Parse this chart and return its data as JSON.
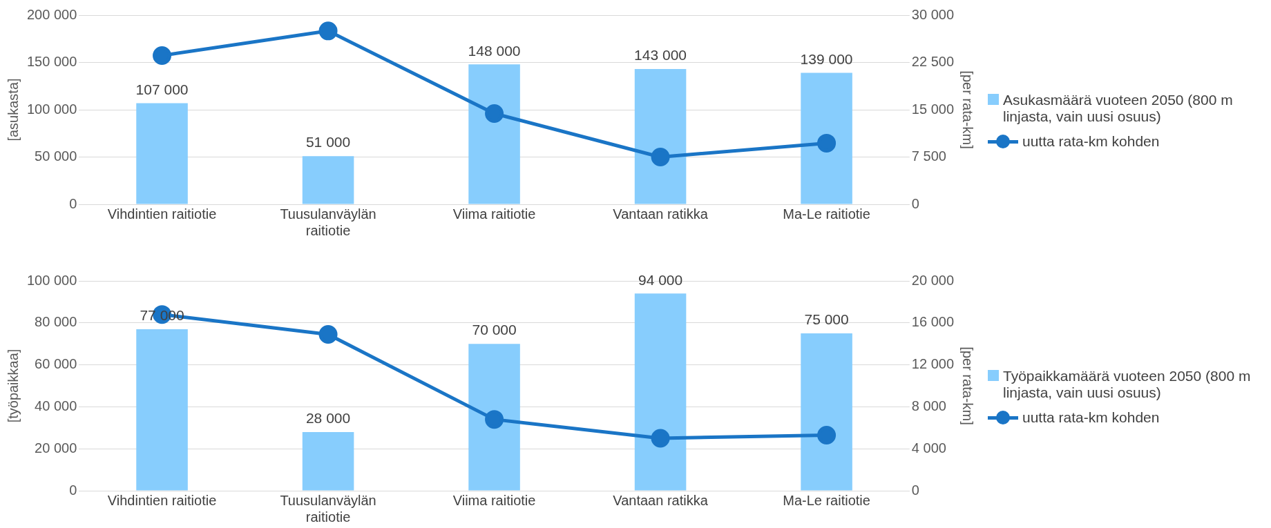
{
  "chart_data": [
    {
      "type": "bar",
      "categories": [
        "Vihdintien raitiotie",
        "Tuusulanväylän raitiotie",
        "Viima raitiotie",
        "Vantaan ratikka",
        "Ma-Le raitiotie"
      ],
      "ylabel": "[asukasta]",
      "y2label": "[per rata-km]",
      "ylim": [
        0,
        200000
      ],
      "yticks": [
        {
          "value": 0,
          "label": "0"
        },
        {
          "value": 50000,
          "label": "50 000"
        },
        {
          "value": 100000,
          "label": "100 000"
        },
        {
          "value": 150000,
          "label": "150 000"
        },
        {
          "value": 200000,
          "label": "200 000"
        }
      ],
      "y2lim": [
        0,
        30000
      ],
      "y2ticks": [
        {
          "value": 0,
          "label": "0"
        },
        {
          "value": 7500,
          "label": "7 500"
        },
        {
          "value": 15000,
          "label": "15 000"
        },
        {
          "value": 22500,
          "label": "22 500"
        },
        {
          "value": 30000,
          "label": "30 000"
        }
      ],
      "grid": "y",
      "legend": "right",
      "series": [
        {
          "name": "Asukasmäärä vuoteen 2050 (800 m linjasta, vain uusi osuus)",
          "color": "#87cdfd",
          "values": [
            107000,
            51000,
            148000,
            143000,
            139000
          ],
          "value_labels": [
            "107 000",
            "51 000",
            "148 000",
            "143 000",
            "139 000"
          ]
        },
        {
          "type": "line",
          "name": "uutta rata-km kohden",
          "color": "#1a75c6",
          "axis": "y2",
          "marker": "circle",
          "values": [
            23600,
            27500,
            14400,
            7500,
            9700
          ]
        }
      ]
    },
    {
      "type": "bar",
      "categories": [
        "Vihdintien raitiotie",
        "Tuusulanväylän raitiotie",
        "Viima raitiotie",
        "Vantaan ratikka",
        "Ma-Le raitiotie"
      ],
      "ylabel": "[työpaikkaa]",
      "y2label": "[per rata-km]",
      "ylim": [
        0,
        100000
      ],
      "yticks": [
        {
          "value": 0,
          "label": "0"
        },
        {
          "value": 20000,
          "label": "20 000"
        },
        {
          "value": 40000,
          "label": "40 000"
        },
        {
          "value": 60000,
          "label": "60 000"
        },
        {
          "value": 80000,
          "label": "80 000"
        },
        {
          "value": 100000,
          "label": "100 000"
        }
      ],
      "y2lim": [
        0,
        20000
      ],
      "y2ticks": [
        {
          "value": 0,
          "label": "0"
        },
        {
          "value": 4000,
          "label": "4 000"
        },
        {
          "value": 8000,
          "label": "8 000"
        },
        {
          "value": 12000,
          "label": "12 000"
        },
        {
          "value": 16000,
          "label": "16 000"
        },
        {
          "value": 20000,
          "label": "20 000"
        }
      ],
      "grid": "y",
      "legend": "right",
      "series": [
        {
          "name": "Työpaikkamäärä vuoteen 2050 (800 m linjasta, vain uusi osuus)",
          "color": "#87cdfd",
          "values": [
            77000,
            28000,
            70000,
            94000,
            75000
          ],
          "value_labels": [
            "77 000",
            "28 000",
            "70 000",
            "94 000",
            "75 000"
          ]
        },
        {
          "type": "line",
          "name": "uutta rata-km kohden",
          "color": "#1a75c6",
          "axis": "y2",
          "marker": "circle",
          "values": [
            16800,
            14900,
            6800,
            5000,
            5300
          ]
        }
      ]
    }
  ]
}
